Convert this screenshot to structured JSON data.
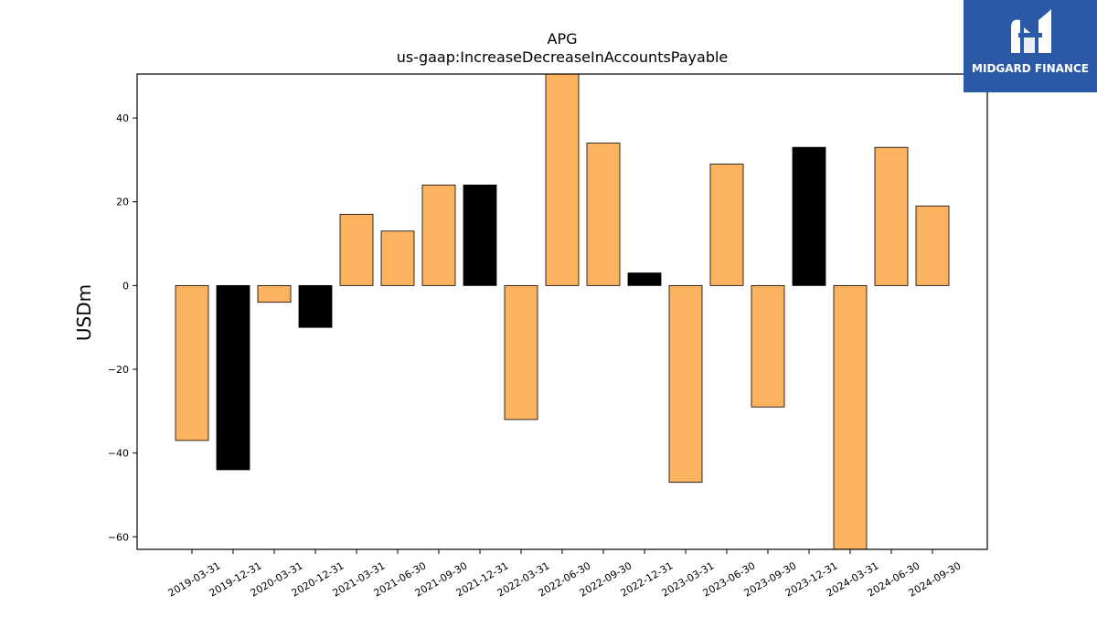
{
  "chart_data": {
    "type": "bar",
    "title": "APG",
    "subtitle": "us-gaap:IncreaseDecreaseInAccountsPayable",
    "xlabel": "",
    "ylabel": "USDm",
    "ylim": [
      -63,
      50.5
    ],
    "yticks": [
      -60,
      -40,
      -20,
      0,
      20,
      40
    ],
    "ytick_labels": [
      "−60",
      "−40",
      "−20",
      "0",
      "20",
      "40"
    ],
    "grid": false,
    "categories": [
      "2019-03-31",
      "2019-12-31",
      "2020-03-31",
      "2020-12-31",
      "2021-03-31",
      "2021-06-30",
      "2021-09-30",
      "2021-12-31",
      "2022-03-31",
      "2022-06-30",
      "2022-09-30",
      "2022-12-31",
      "2023-03-31",
      "2023-06-30",
      "2023-09-30",
      "2023-12-31",
      "2024-03-31",
      "2024-06-30",
      "2024-09-30"
    ],
    "values": [
      -37,
      -44,
      -4,
      -10,
      17,
      13,
      24,
      24,
      -32,
      51,
      34,
      3,
      -47,
      29,
      -29,
      33,
      -64,
      33,
      19
    ],
    "bar_colors": [
      "#fbb360",
      "#000000",
      "#fbb360",
      "#000000",
      "#fbb360",
      "#fbb360",
      "#fbb360",
      "#000000",
      "#fbb360",
      "#fbb360",
      "#fbb360",
      "#000000",
      "#fbb360",
      "#fbb360",
      "#fbb360",
      "#000000",
      "#fbb360",
      "#fbb360",
      "#fbb360"
    ],
    "colors": {
      "quarter": "#fbb360",
      "year_end": "#000000",
      "edge": "#000000"
    }
  },
  "logo": {
    "text": "MIDGARD FINANCE",
    "background": "#2b59a8",
    "icon": "midgard-monogram-icon"
  }
}
